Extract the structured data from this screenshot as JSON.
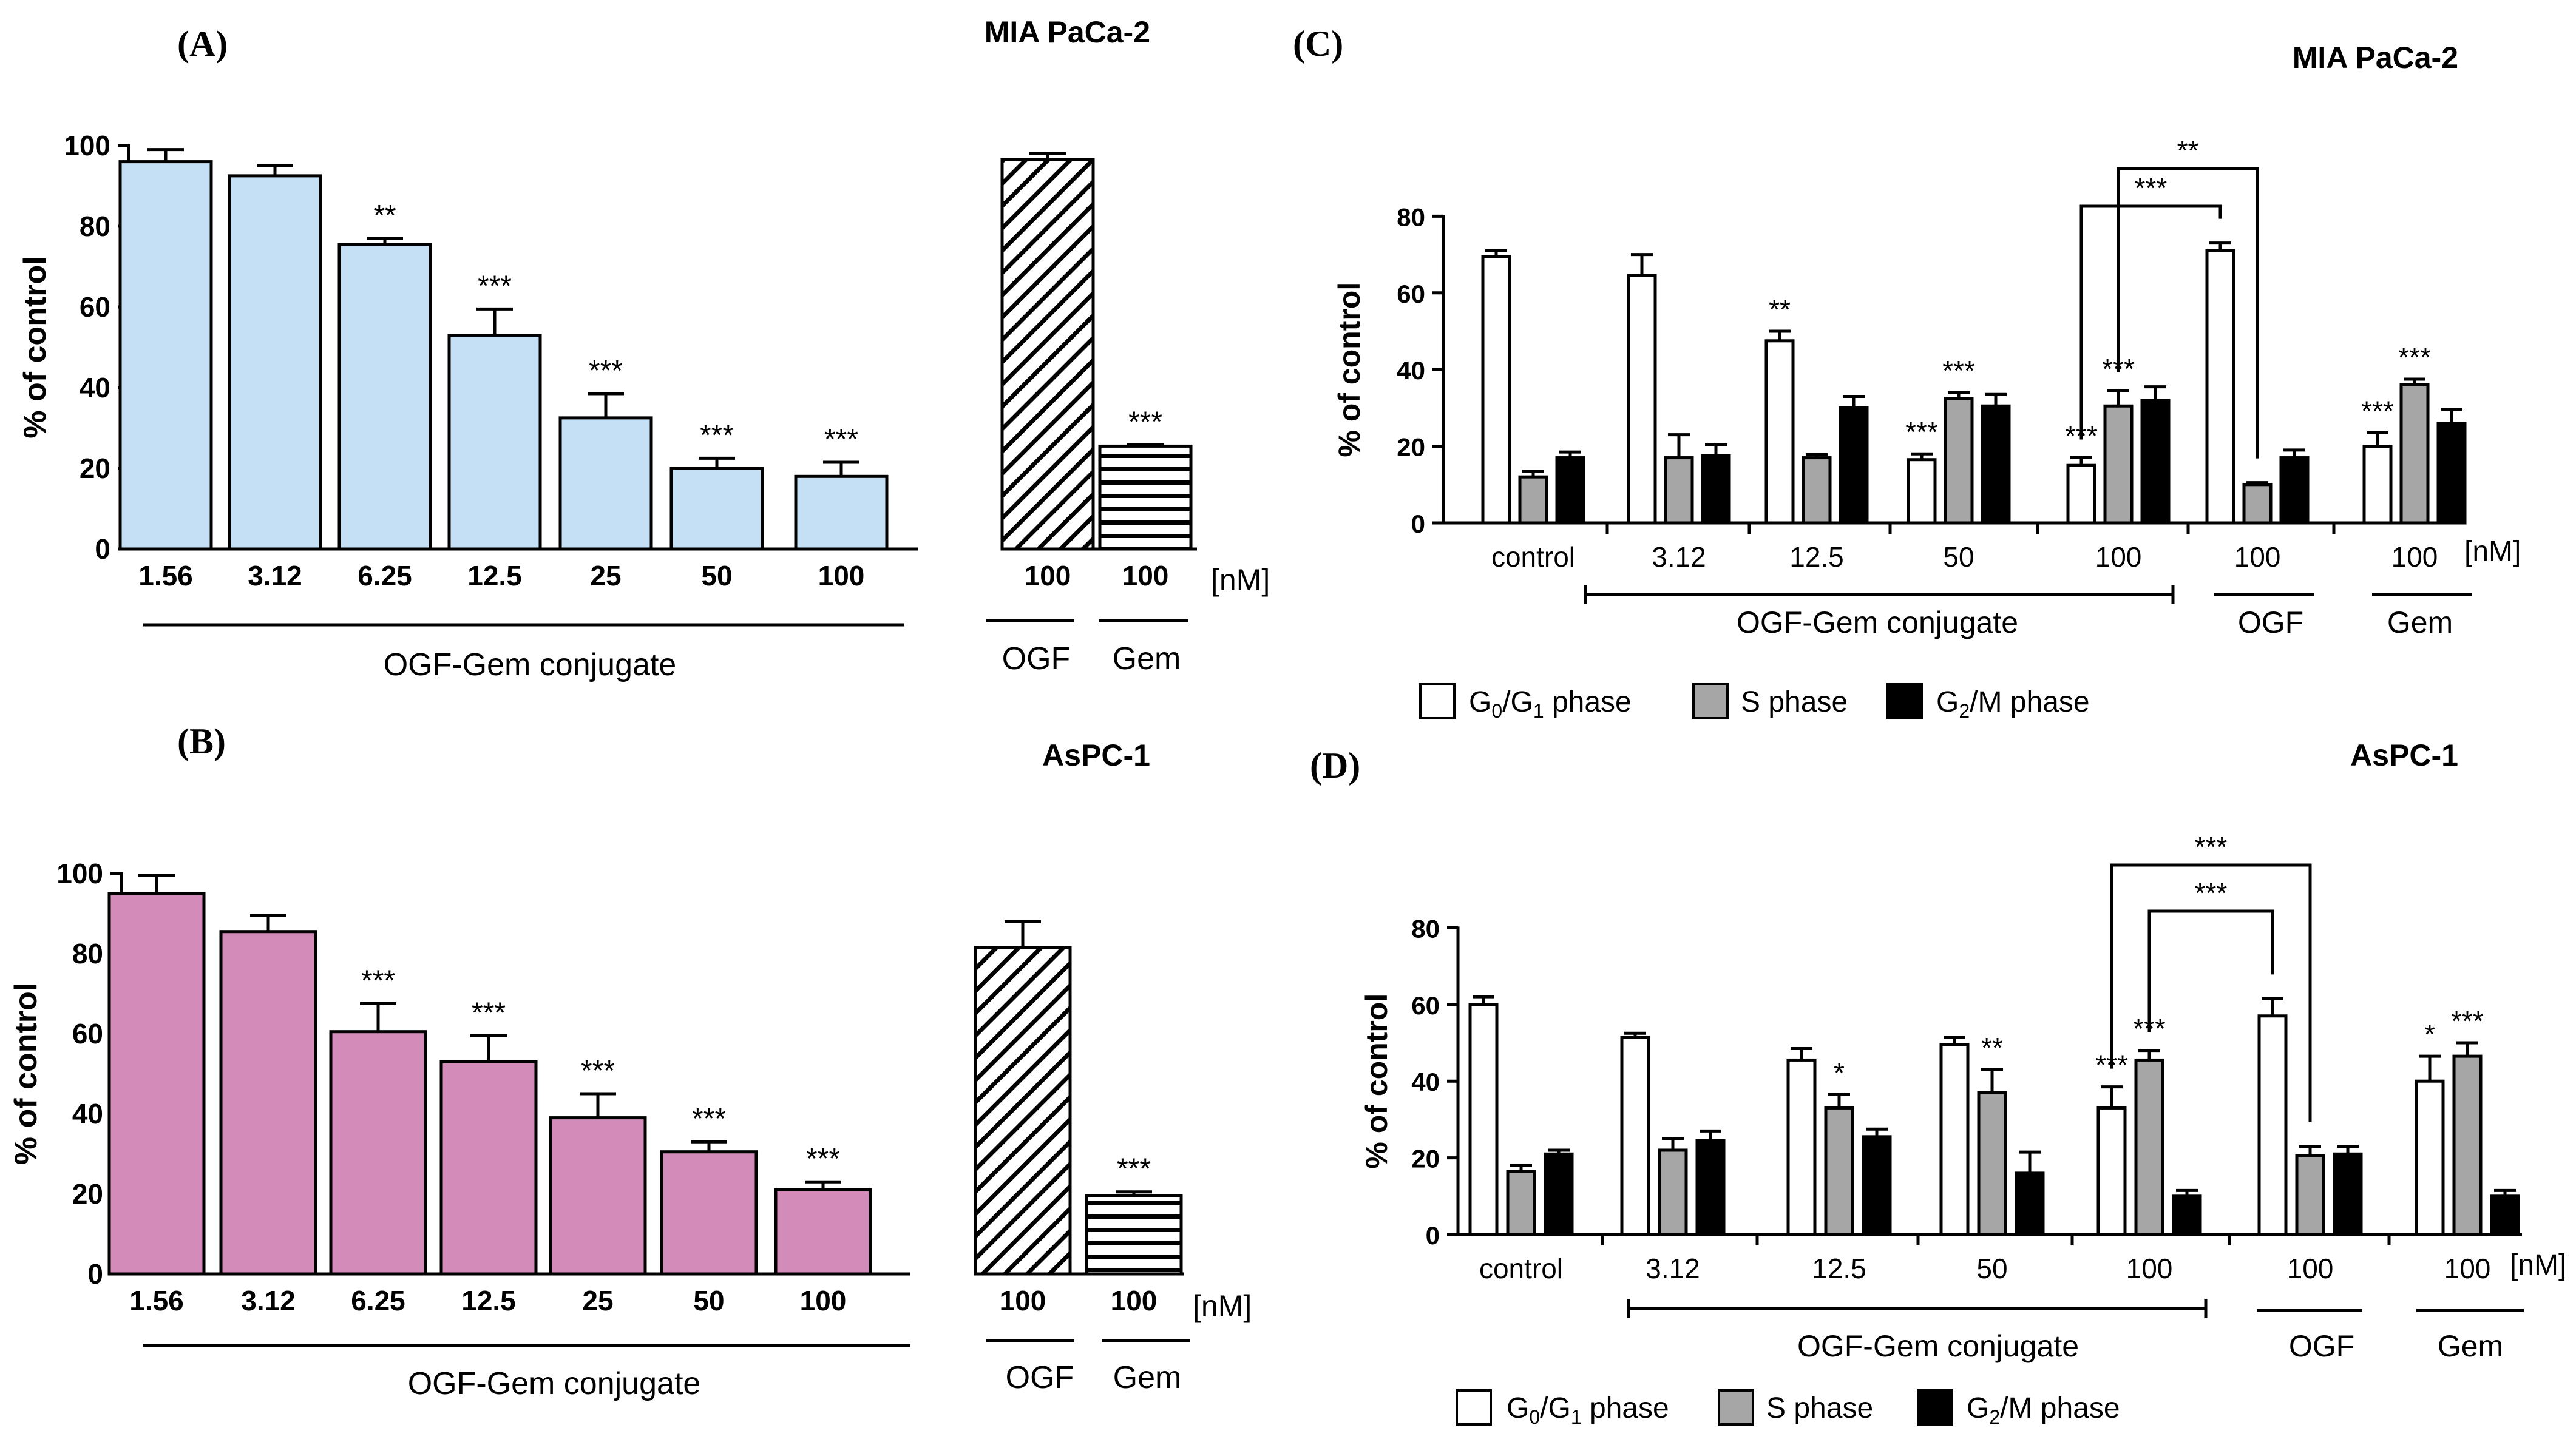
{
  "chart_data": [
    {
      "panel": "(A)",
      "title": "MIA PaCa-2",
      "type": "bar",
      "ylabel": "% of control",
      "ylim": [
        0,
        100
      ],
      "yticks": [
        "0",
        "20",
        "40",
        "60",
        "80",
        "100"
      ],
      "unit_label": "[nM]",
      "bar_color": "#c5dff5",
      "categories": [
        "1.56",
        "3.12",
        "6.25",
        "12.5",
        "25",
        "50",
        "100",
        "100",
        "100"
      ],
      "values": [
        96,
        92.5,
        75.5,
        53,
        32.5,
        20,
        18,
        96.5,
        25.5
      ],
      "errors": [
        3,
        2.5,
        1.5,
        6.5,
        6,
        2.5,
        3.5,
        1.5,
        0.3
      ],
      "significance": [
        "",
        "",
        "**",
        "***",
        "***",
        "***",
        "***",
        "",
        "***"
      ],
      "patterns": [
        "solid",
        "solid",
        "solid",
        "solid",
        "solid",
        "solid",
        "solid",
        "hatch",
        "stripes"
      ],
      "groups": [
        {
          "label": "OGF-Gem conjugate"
        },
        {
          "label": "OGF"
        },
        {
          "label": "Gem"
        }
      ]
    },
    {
      "panel": "(B)",
      "title": "AsPC-1",
      "type": "bar",
      "ylabel": "% of control",
      "ylim": [
        0,
        100
      ],
      "yticks": [
        "0",
        "20",
        "40",
        "60",
        "80",
        "100"
      ],
      "unit_label": "[nM]",
      "bar_color": "#d38bb9",
      "categories": [
        "1.56",
        "3.12",
        "6.25",
        "12.5",
        "25",
        "50",
        "100",
        "100",
        "100"
      ],
      "values": [
        95,
        85.5,
        60.5,
        53,
        39,
        30.5,
        21,
        81.5,
        19.5
      ],
      "errors": [
        4.5,
        4,
        7,
        6.5,
        6,
        2.5,
        2,
        6.5,
        1
      ],
      "significance": [
        "",
        "",
        "***",
        "***",
        "***",
        "***",
        "***",
        "",
        "***"
      ],
      "patterns": [
        "solid",
        "solid",
        "solid",
        "solid",
        "solid",
        "solid",
        "solid",
        "hatch",
        "stripes"
      ],
      "groups": [
        {
          "label": "OGF-Gem conjugate"
        },
        {
          "label": "OGF"
        },
        {
          "label": "Gem"
        }
      ]
    },
    {
      "panel": "(C)",
      "title": "MIA PaCa-2",
      "type": "bar",
      "ylabel": "% of control",
      "ylim": [
        0,
        80
      ],
      "yticks": [
        "0",
        "20",
        "40",
        "60",
        "80"
      ],
      "unit_label": "[nM]",
      "categories": [
        "control",
        "3.12",
        "12.5",
        "50",
        "100",
        "100",
        "100"
      ],
      "series": [
        {
          "name": "G0/G1 phase",
          "values": [
            69.5,
            64.5,
            47.5,
            16.5,
            15,
            71,
            20
          ],
          "errors": [
            1.5,
            5.5,
            2.5,
            1.5,
            2,
            2,
            3.5
          ],
          "significance": [
            "",
            "",
            "**",
            "***",
            "***",
            "",
            "***"
          ]
        },
        {
          "name": "S phase",
          "values": [
            12,
            17,
            17,
            32.5,
            30.5,
            10,
            36
          ],
          "errors": [
            1.5,
            6,
            0.8,
            1.5,
            4,
            0.5,
            1.5
          ],
          "significance": [
            "",
            "",
            "",
            "***",
            "***",
            "",
            "***"
          ]
        },
        {
          "name": "G2/M phase",
          "values": [
            17,
            17.5,
            30,
            30.5,
            32,
            17,
            26
          ],
          "errors": [
            1.5,
            3,
            3,
            3,
            3.5,
            2,
            3.5
          ],
          "significance": [
            "",
            "",
            "",
            "",
            "",
            "",
            ""
          ]
        }
      ],
      "comparisons": [
        {
          "label": "**",
          "from": "100 nM conjugate S phase",
          "to": "OGF S phase"
        },
        {
          "label": "***",
          "from": "100 nM conjugate G0/G1 phase",
          "to": "OGF G0/G1 phase"
        }
      ],
      "groups": [
        {
          "label": "OGF-Gem conjugate"
        },
        {
          "label": "OGF"
        },
        {
          "label": "Gem"
        }
      ]
    },
    {
      "panel": "(D)",
      "title": "AsPC-1",
      "type": "bar",
      "ylabel": "% of control",
      "ylim": [
        0,
        80
      ],
      "yticks": [
        "0",
        "20",
        "40",
        "60",
        "80"
      ],
      "unit_label": "[nM]",
      "categories": [
        "control",
        "3.12",
        "12.5",
        "50",
        "100",
        "100",
        "100"
      ],
      "series": [
        {
          "name": "G0/G1 phase",
          "values": [
            60,
            51.5,
            45.5,
            49.5,
            33,
            57,
            40
          ],
          "errors": [
            2,
            1,
            3,
            2,
            5.5,
            4.5,
            6.5
          ],
          "significance": [
            "",
            "",
            "",
            "",
            "***",
            "",
            "*"
          ]
        },
        {
          "name": "S phase",
          "values": [
            16.5,
            22,
            33,
            37,
            45.5,
            20.5,
            46.5
          ],
          "errors": [
            1.5,
            3,
            3.5,
            6,
            2.5,
            2.5,
            3.5
          ],
          "significance": [
            "",
            "",
            "*",
            "**",
            "***",
            "",
            "***"
          ]
        },
        {
          "name": "G2/M phase",
          "values": [
            21,
            24.5,
            25.5,
            16,
            10,
            21,
            10
          ],
          "errors": [
            1,
            2.5,
            2,
            5.5,
            1.5,
            2,
            1.5
          ],
          "significance": [
            "",
            "",
            "",
            "",
            "",
            "",
            ""
          ]
        }
      ],
      "comparisons": [
        {
          "label": "***",
          "from": "100 nM conjugate G0/G1 phase",
          "to": "OGF S phase"
        },
        {
          "label": "***",
          "from": "100 nM conjugate S phase",
          "to": "OGF G0/G1 phase"
        }
      ],
      "groups": [
        {
          "label": "OGF-Gem conjugate"
        },
        {
          "label": "OGF"
        },
        {
          "label": "Gem"
        }
      ]
    }
  ],
  "legend": {
    "g0g1": {
      "main": "G",
      "sub1": "0",
      "mid": "/G",
      "sub2": "1",
      "tail": " phase"
    },
    "s": "S phase",
    "g2m": {
      "main": "G",
      "sub": "2",
      "tail": "/M phase"
    }
  },
  "colors": {
    "g0g1": "#ffffff",
    "s": "#a6a6a6",
    "g2m": "#000000",
    "axis": "#000000"
  }
}
